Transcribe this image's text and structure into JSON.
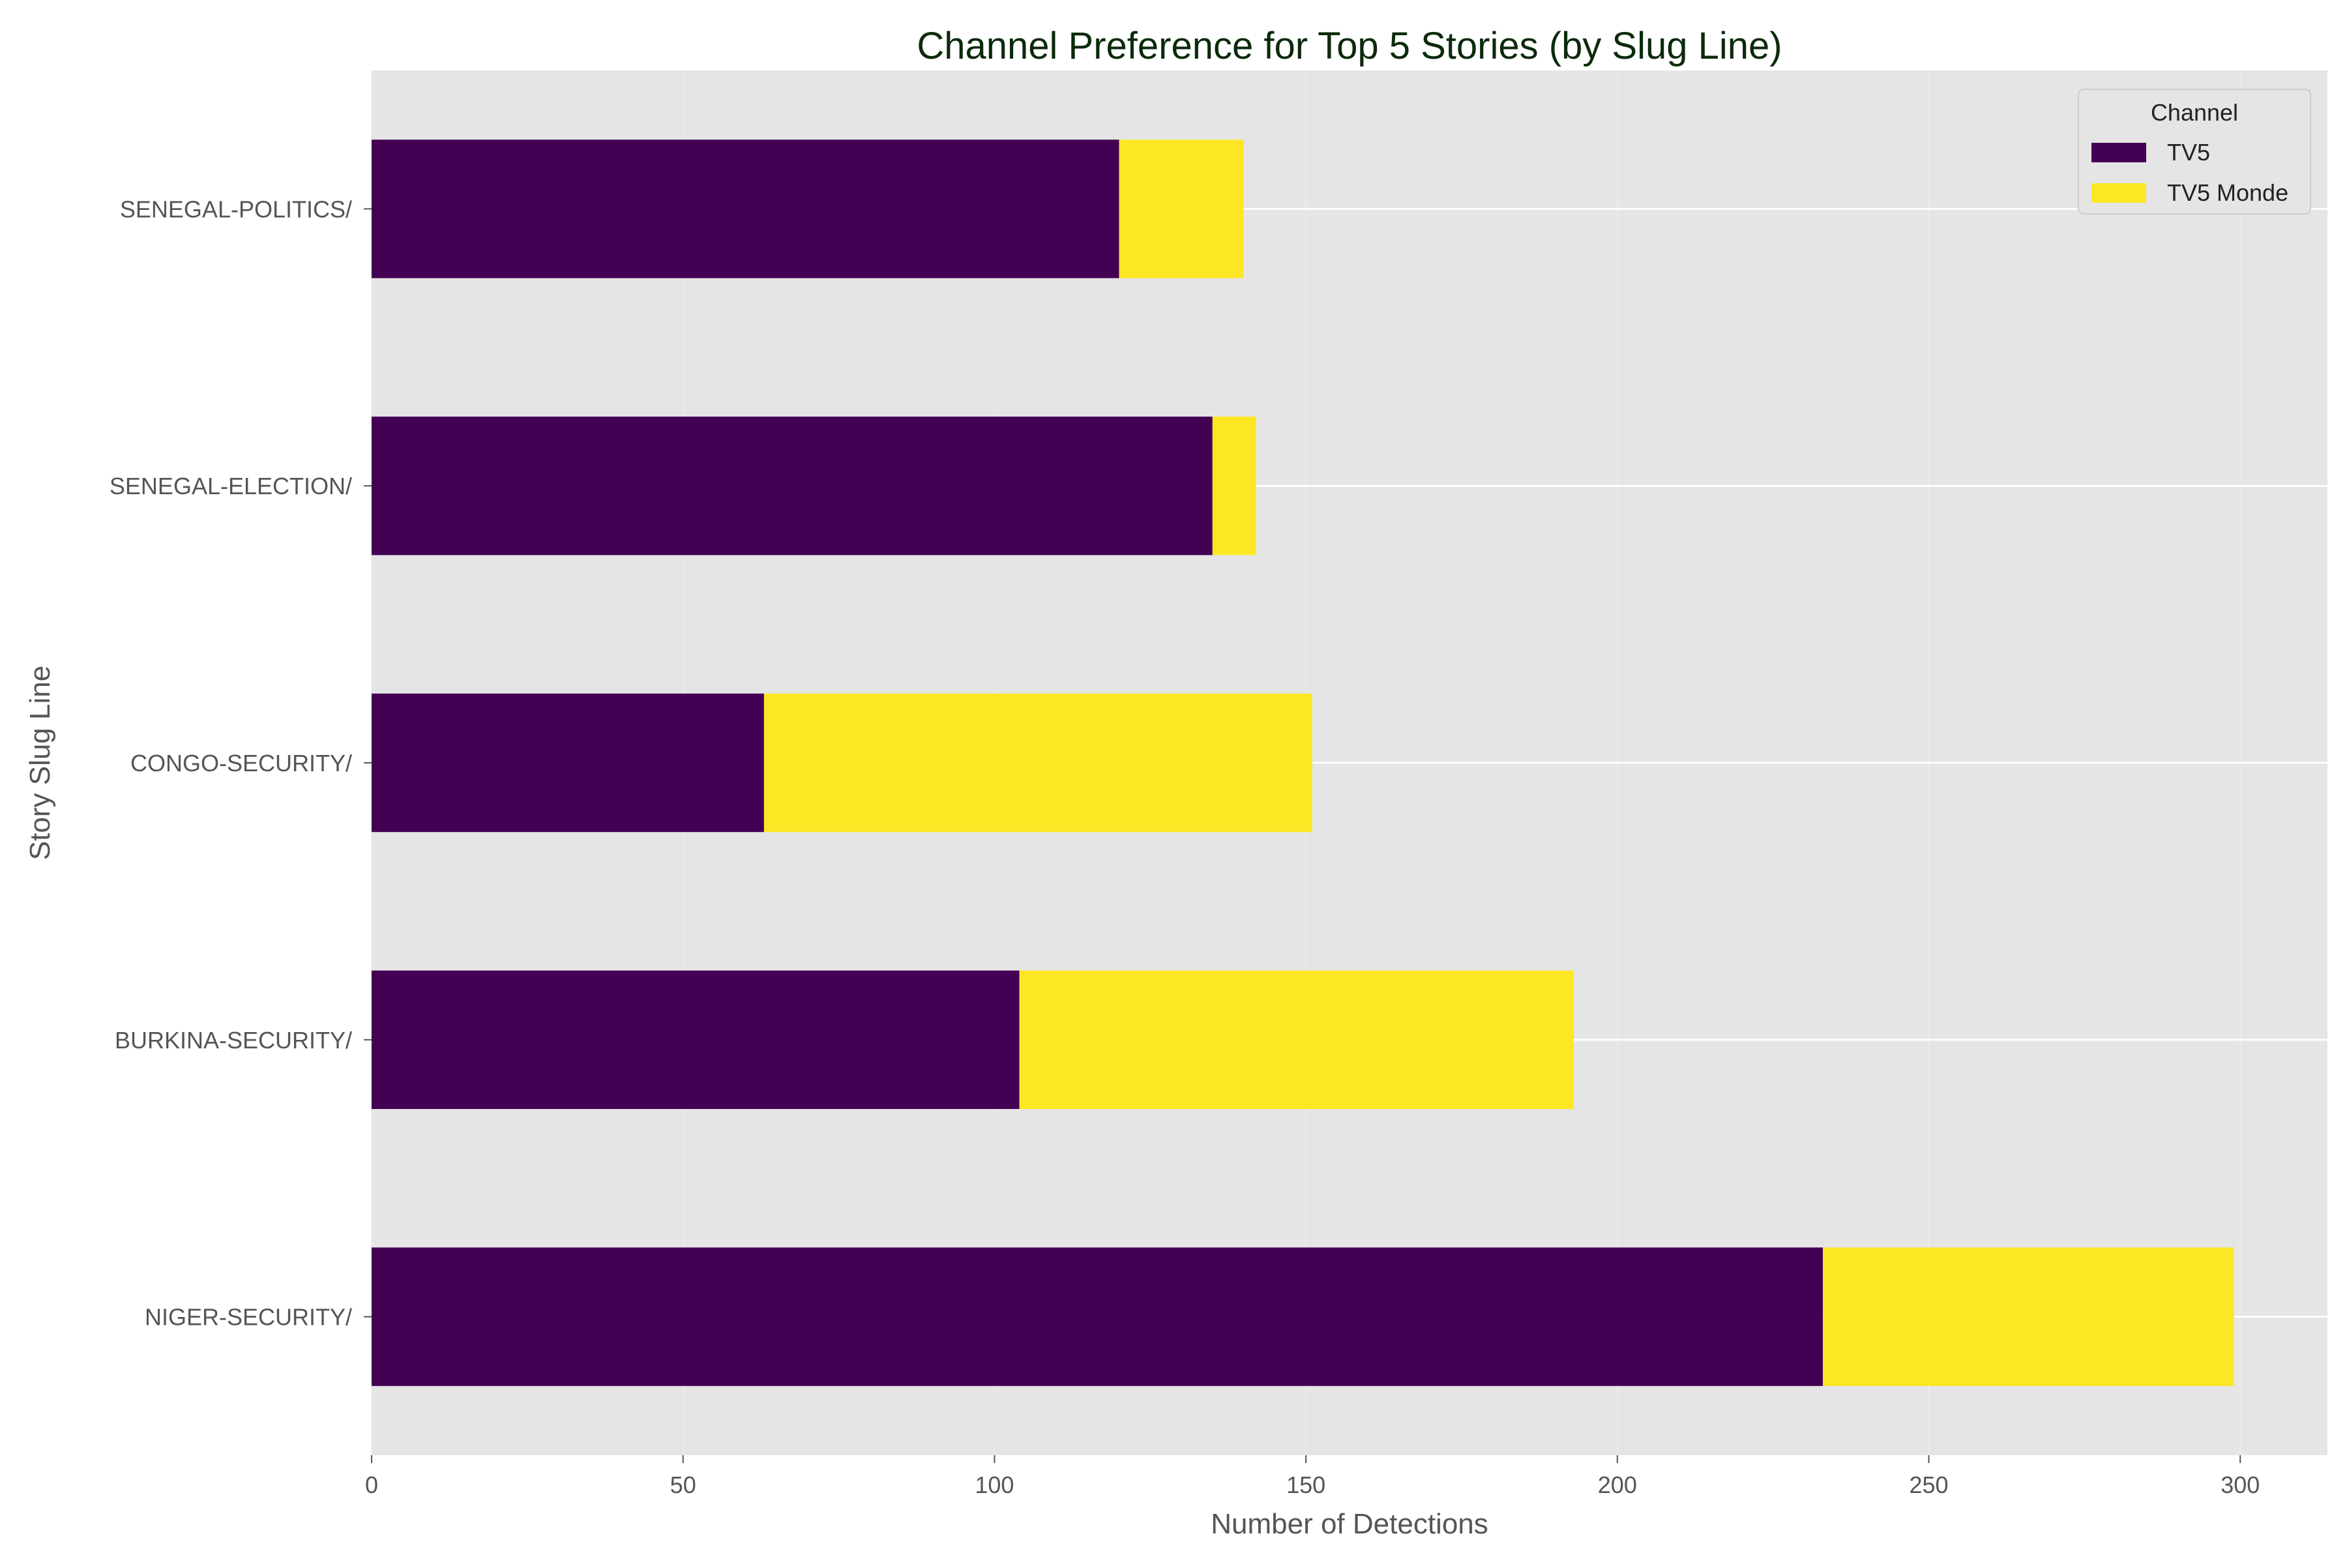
{
  "chart_data": {
    "type": "bar",
    "orientation": "horizontal",
    "stacked": true,
    "title": "Channel Preference for Top 5 Stories (by Slug Line)",
    "xlabel": "Number of Detections",
    "ylabel": "Story Slug Line",
    "categories": [
      "NIGER-SECURITY/",
      "BURKINA-SECURITY/",
      "CONGO-SECURITY/",
      "SENEGAL-ELECTION/",
      "SENEGAL-POLITICS/"
    ],
    "series": [
      {
        "name": "TV5",
        "color": "#440154",
        "values": [
          233,
          104,
          63,
          135,
          120
        ]
      },
      {
        "name": "TV5 Monde",
        "color": "#fde725",
        "values": [
          66,
          89,
          88,
          7,
          20
        ]
      }
    ],
    "xlim": [
      0,
      314
    ],
    "xticks": [
      0,
      50,
      100,
      150,
      200,
      250,
      300
    ],
    "grid": true,
    "legend": {
      "title": "Channel",
      "position": "top-right"
    },
    "colors": {
      "background": "#e5e5e5",
      "grid": "#ffffff",
      "title": "#0b2a0b",
      "text": "#555555"
    }
  }
}
